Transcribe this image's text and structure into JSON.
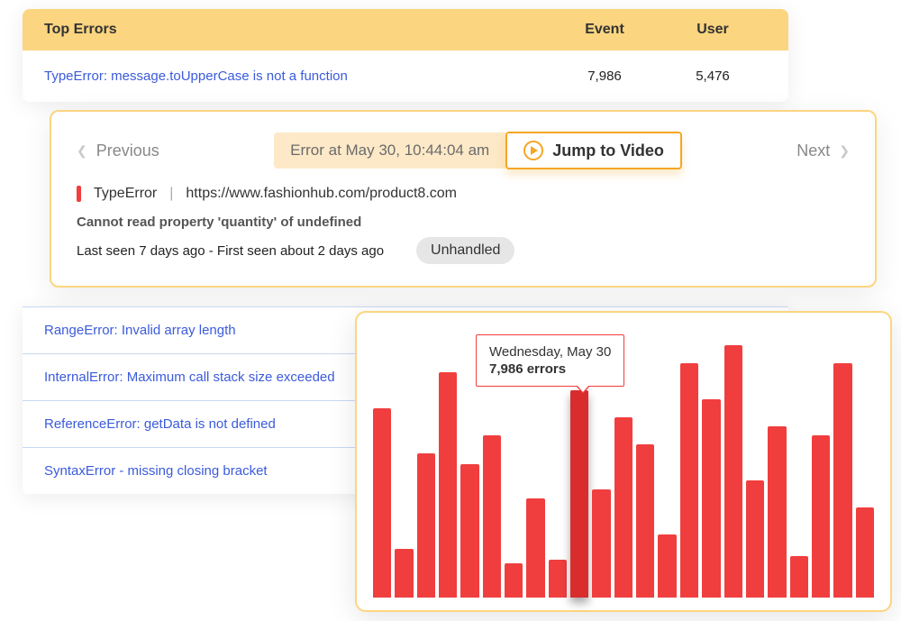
{
  "table": {
    "headers": {
      "errors": "Top Errors",
      "event": "Event",
      "user": "User"
    },
    "first_row": {
      "error": "TypeError: message.toUpperCase is not a function",
      "event": "7,986",
      "user": "5,476"
    },
    "other_rows": [
      "RangeError: Invalid array length",
      "InternalError: Maximum call stack size exceeded",
      "ReferenceError: getData is not defined",
      "SyntaxError - missing closing bracket"
    ]
  },
  "detail": {
    "prev_label": "Previous",
    "next_label": "Next",
    "timestamp": "Error at May 30, 10:44:04 am",
    "jump_label": "Jump to Video",
    "type_name": "TypeError",
    "url": "https://www.fashionhub.com/product8.com",
    "message": "Cannot read property 'quantity' of undefined",
    "seen": "Last seen 7 days ago - First seen about 2 days ago",
    "badge": "Unhandled"
  },
  "chart": {
    "type": "bar",
    "bar_color": "#f03e3e",
    "highlight_color": "#d92c2c",
    "background_color": "#ffffff",
    "border_color": "#fbd580",
    "tooltip_border": "#f03e3e",
    "max_value": 300,
    "highlight_index": 9,
    "values": [
      210,
      54,
      160,
      250,
      148,
      180,
      38,
      110,
      42,
      230,
      120,
      200,
      170,
      70,
      260,
      220,
      280,
      130,
      190,
      46,
      180,
      260,
      100
    ],
    "tooltip": {
      "date": "Wednesday, May 30",
      "count": "7,986 errors"
    }
  },
  "colors": {
    "header_bg": "#fbd580",
    "link": "#3b5bdb",
    "accent": "#f5a623",
    "pill_bg": "#fde9c7"
  }
}
